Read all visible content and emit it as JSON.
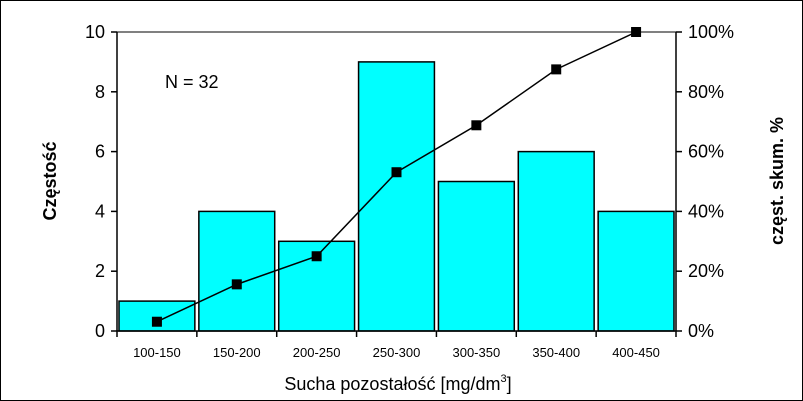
{
  "chart_data": {
    "type": "bar",
    "title": "",
    "xlabel_main": "Sucha pozostałość [mg/dm",
    "xlabel_sup": "3",
    "xlabel_end": "]",
    "ylabel": "Częstość",
    "y2label": "częst. skum. %",
    "annotation": "N = 32",
    "categories": [
      "100-150",
      "150-200",
      "200-250",
      "250-300",
      "300-350",
      "350-400",
      "400-450"
    ],
    "series": [
      {
        "type": "bar",
        "values": [
          1,
          4,
          3,
          9,
          5,
          6,
          4
        ],
        "color": "#00FFFF"
      },
      {
        "type": "line",
        "axis": "right",
        "values": [
          3.1,
          15.6,
          25.0,
          53.1,
          68.8,
          87.5,
          100.0
        ],
        "color": "#000000",
        "marker": "square"
      }
    ],
    "ylim": [
      0,
      10
    ],
    "yticks": [
      "0",
      "2",
      "4",
      "6",
      "8",
      "10"
    ],
    "y2lim": [
      0,
      100
    ],
    "y2ticks": [
      "0%",
      "20%",
      "40%",
      "60%",
      "80%",
      "100%"
    ],
    "grid": false,
    "plot_background": "#FFFFFF"
  }
}
